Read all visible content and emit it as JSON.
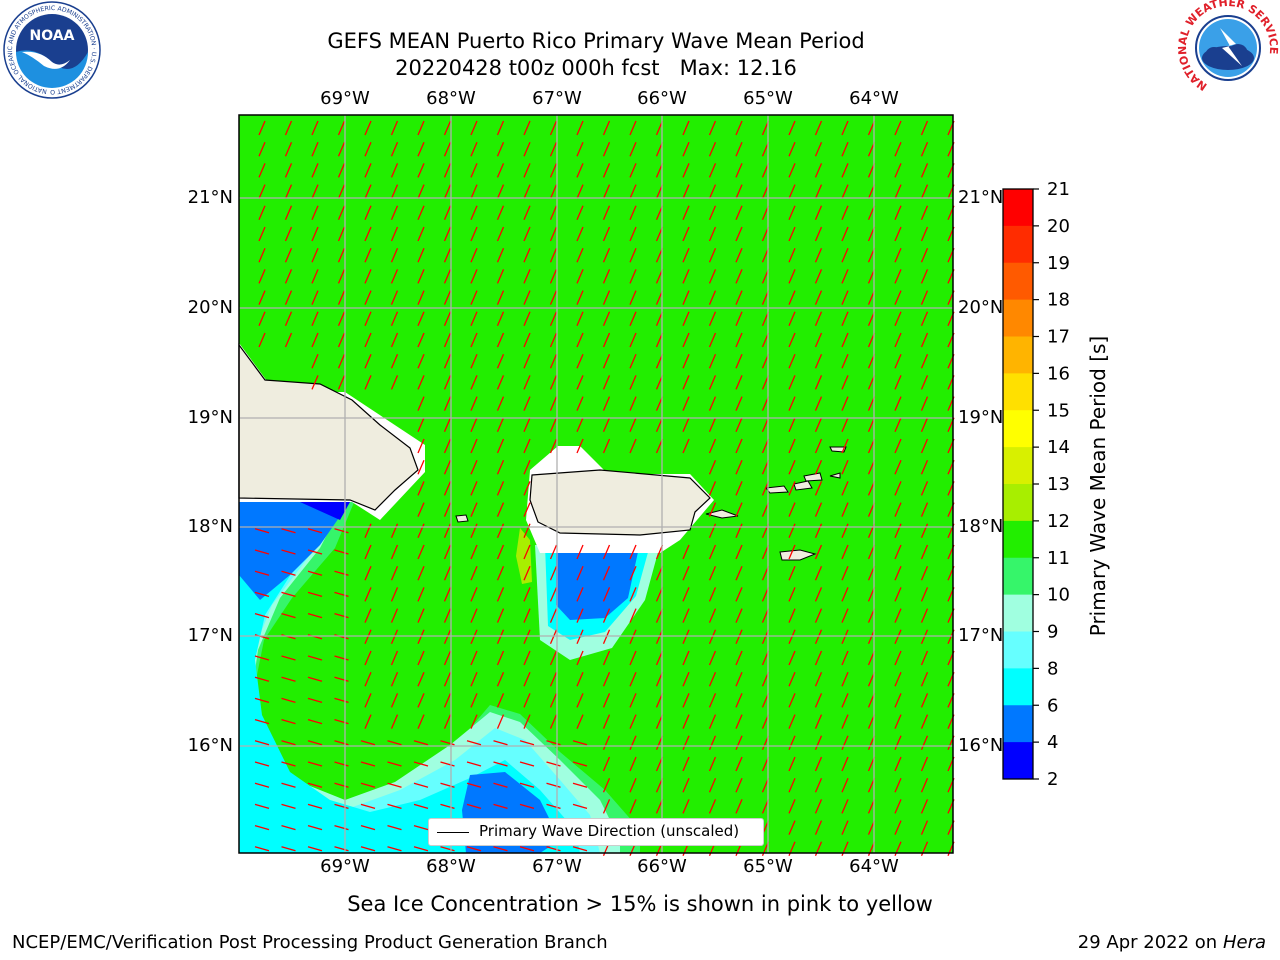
{
  "title": {
    "line1": "GEFS MEAN Puerto Rico Primary Wave Mean Period",
    "line2": "20220428 t00z 000h fcst   Max: 12.16"
  },
  "map": {
    "lon_ticks": [
      "69°W",
      "68°W",
      "67°W",
      "66°W",
      "65°W",
      "64°W"
    ],
    "lat_ticks": [
      "21°N",
      "20°N",
      "19°N",
      "18°N",
      "17°N",
      "16°N"
    ],
    "colors": {
      "ocean": "#22ee00",
      "land": "#efeddf",
      "arrows": "#ff0000",
      "gridlines": "#b0b0b0"
    },
    "legend_label": "Primary Wave Direction (unscaled)"
  },
  "colorbar": {
    "title": "Primary Wave Mean Period [s]",
    "ticks": [
      "21",
      "20",
      "19",
      "18",
      "17",
      "16",
      "15",
      "14",
      "13",
      "12",
      "11",
      "10",
      "9",
      "8",
      "6",
      "4",
      "2"
    ],
    "colors_top_to_bottom": [
      "#ff0000",
      "#ff2c00",
      "#ff5a00",
      "#ff8800",
      "#ffb400",
      "#ffe000",
      "#ffff00",
      "#d8f000",
      "#a8ee00",
      "#22ee00",
      "#36f56a",
      "#a0ffe0",
      "#66ffff",
      "#00ffff",
      "#0078ff",
      "#0000ff"
    ]
  },
  "footer": {
    "note": "Sea Ice Concentration > 15% is shown in pink to yellow",
    "branch": "NCEP/EMC/Verification Post Processing Product Generation Branch",
    "date": "29 Apr 2022 on",
    "machine": "Hera"
  },
  "logos": {
    "noaa_text": "NOAA",
    "noaa_ring": "NATIONAL OCEANIC AND ATMOSPHERIC ADMINISTRATION · U.S. DEPARTMENT OF COMMERCE",
    "nws_ring": "NATIONAL WEATHER SERVICE"
  }
}
